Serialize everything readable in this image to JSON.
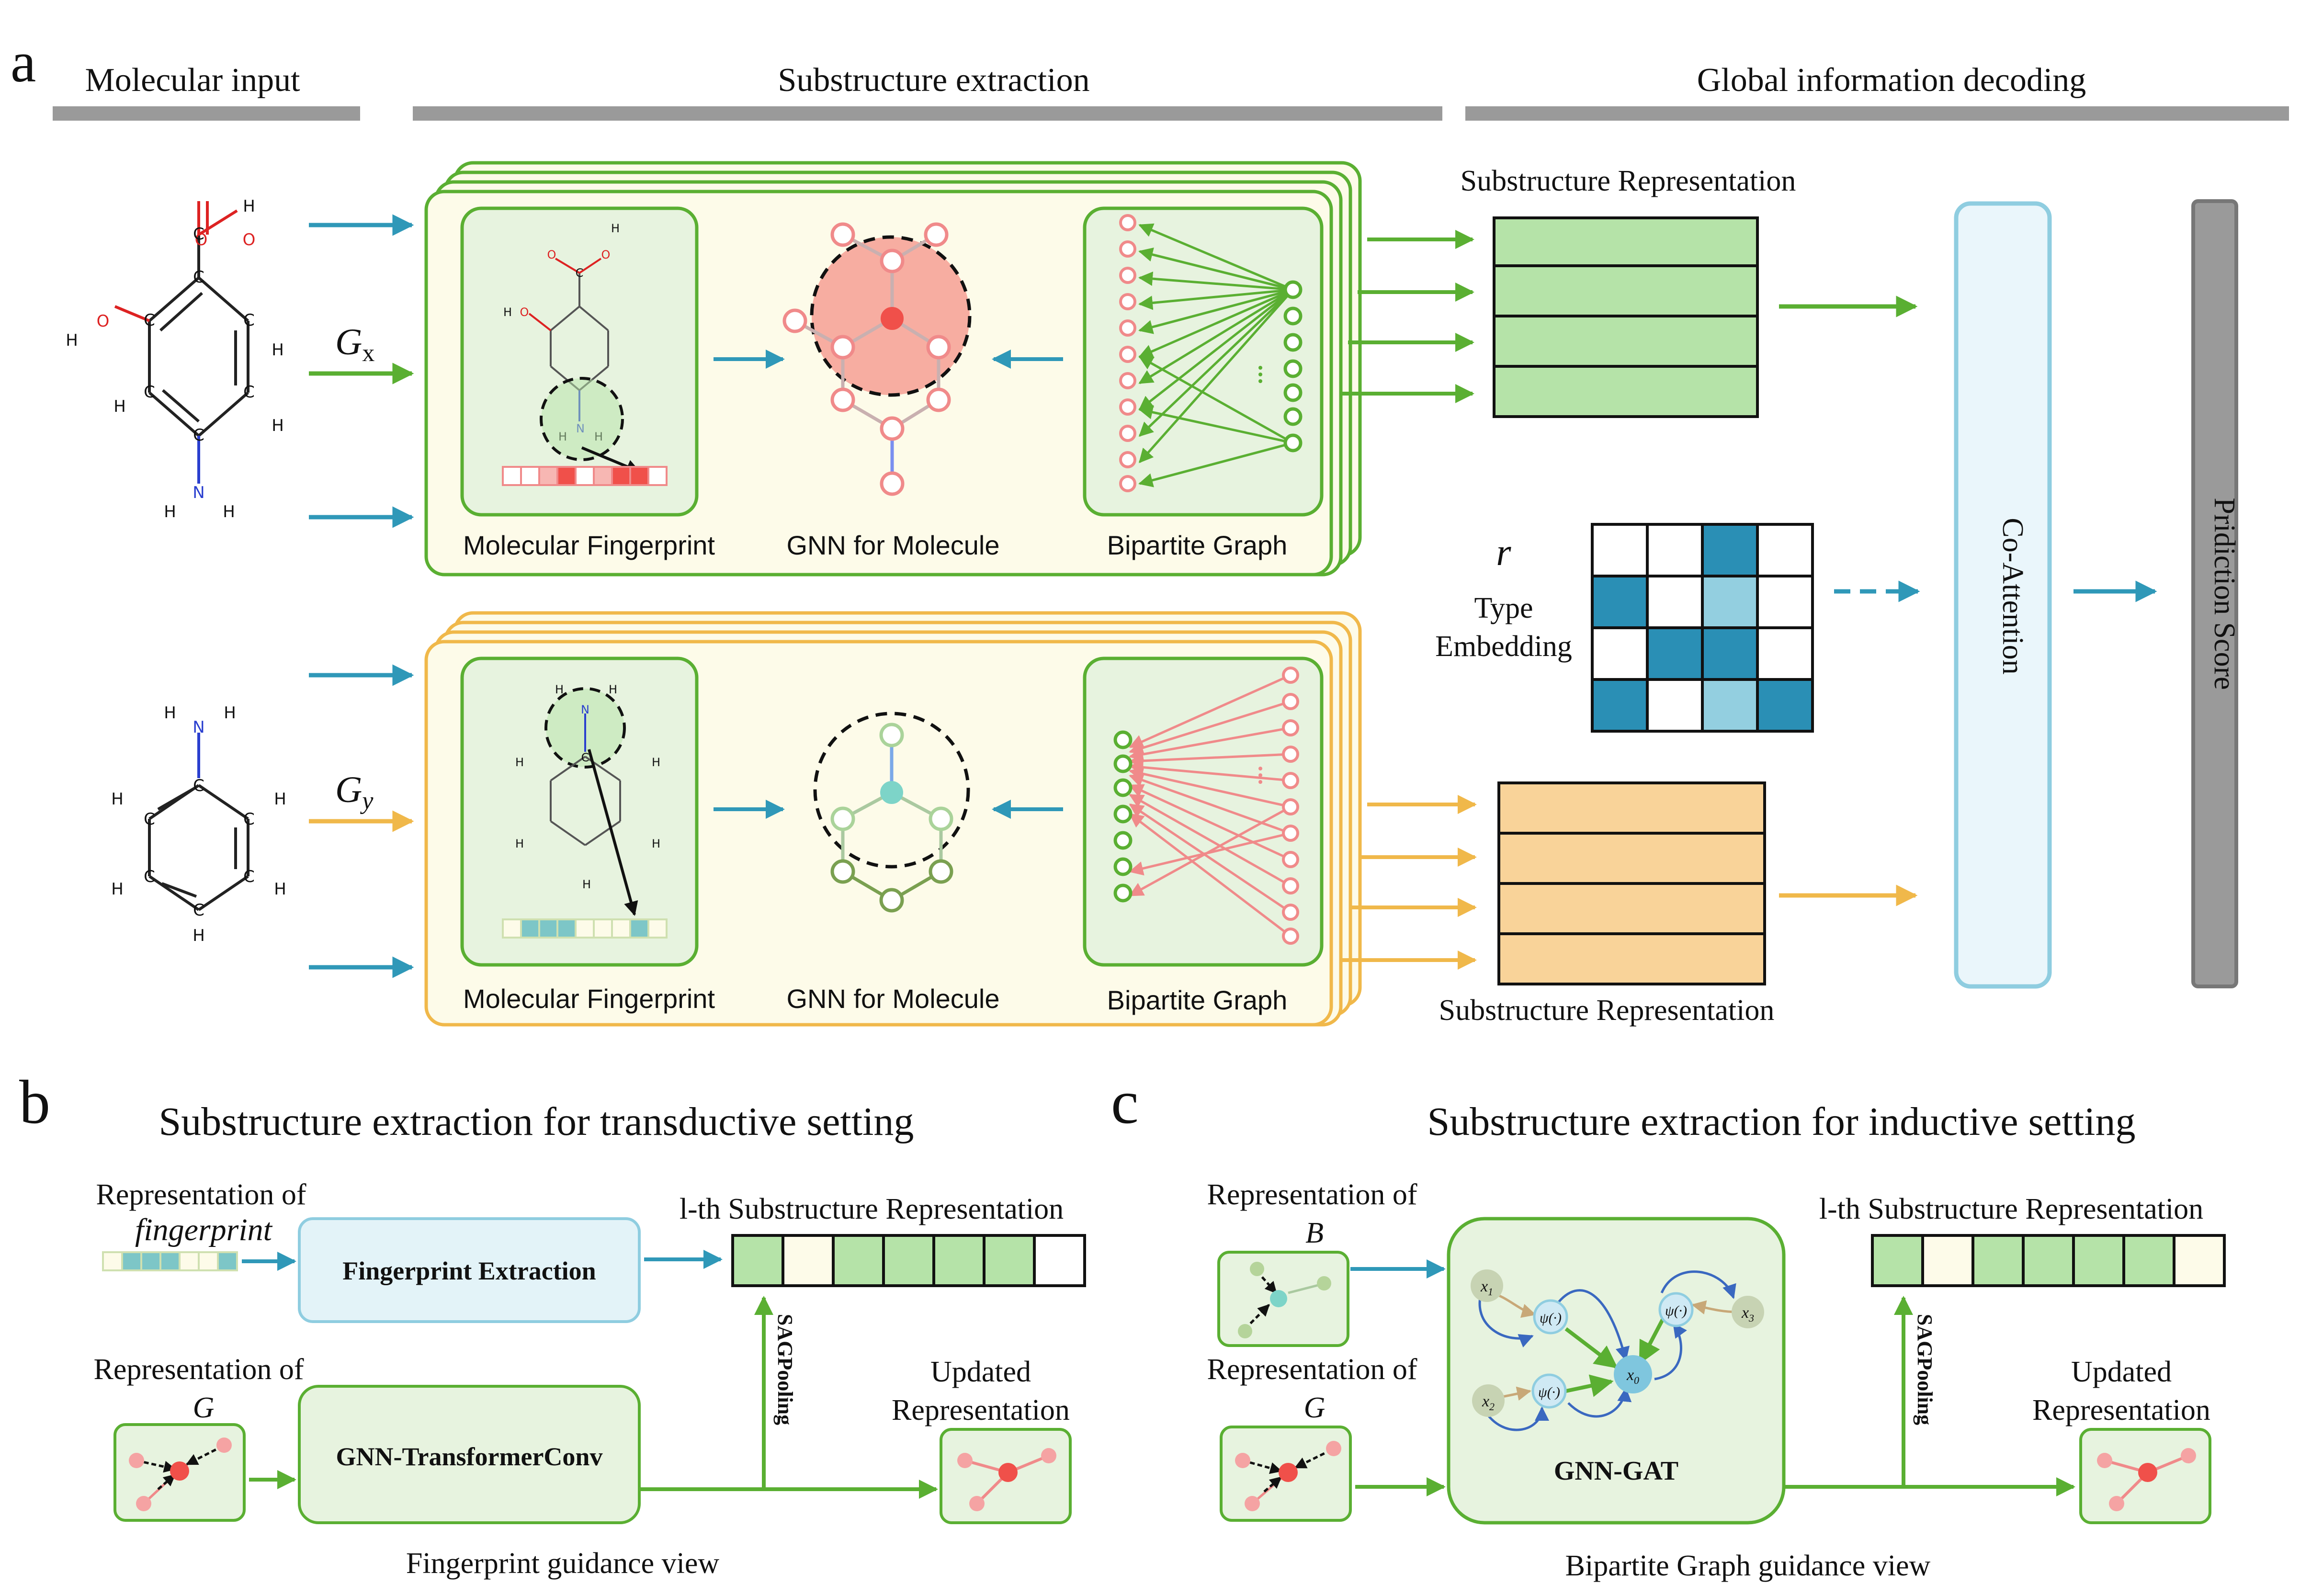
{
  "panel_letters": {
    "a": "a",
    "b": "b",
    "c": "c"
  },
  "panel_a": {
    "stage_headers": {
      "molecular_input": "Molecular input",
      "substructure_extraction": "Substructure extraction",
      "global_decoding": "Global information decoding"
    },
    "graph_x_symbol": "G",
    "graph_x_subscript": "x",
    "graph_y_symbol": "G",
    "graph_y_subscript": "y",
    "drug_x_label": "",
    "drug_y_label": "",
    "box_labels": {
      "molecular_fingerprint": "Molecular Fingerprint",
      "gnn_for_molecule": "GNN for Molecule",
      "bipartite_graph": "Bipartite Graph"
    },
    "substructure_representation": "Substructure Representation",
    "type_symbol": "r",
    "type_embedding_line1": "Type",
    "type_embedding_line2": "Embedding",
    "co_attention": "Co-Attention",
    "prediction_score": "Pridiction Score",
    "colors": {
      "green": "#5aaf32",
      "orange": "#f0b84a",
      "blue_arrow": "#2f98b8",
      "teal_dark": "#2a8fb5",
      "teal_light": "#93cfe0",
      "pink": "#f08a8a",
      "red": "#f0504a",
      "cream": "#fdfbe9",
      "green_fill": "#b5e3a8",
      "orange_fill": "#f9d399",
      "box_fill": "#e7f3df",
      "coatt_fill": "#eaf6fb"
    }
  },
  "panel_b": {
    "title": "Substructure extraction for transductive setting",
    "rep_of_fingerprint_line1": "Representation of",
    "rep_of_fingerprint_line2": "fingerprint",
    "fingerprint_extraction": "Fingerprint Extraction",
    "rep_of_g_line1": "Representation of",
    "rep_of_g_line2": "G",
    "gnn_transformerconv": "GNN-TransformerConv",
    "lth_substructure": "l-th Substructure Representation",
    "sagpooling": "SAGPooling",
    "updated_line1": "Updated",
    "updated_line2": "Representation",
    "view_caption": "Fingerprint guidance view"
  },
  "panel_c": {
    "title": "Substructure extraction for inductive setting",
    "rep_of_b_line1": "Representation of",
    "rep_of_b_line2": "B",
    "rep_of_g_line1": "Representation of",
    "rep_of_g_line2": "G",
    "gnn_gat": "GNN-GAT",
    "psi": "ψ(·)",
    "x0": "x",
    "x0_sub": "0",
    "x1": "x",
    "x1_sub": "1",
    "x2": "x",
    "x2_sub": "2",
    "x3": "x",
    "x3_sub": "3",
    "lth_substructure": "l-th Substructure Representation",
    "sagpooling": "SAGPooling",
    "updated_line1": "Updated",
    "updated_line2": "Representation",
    "view_caption": "Bipartite Graph guidance view"
  },
  "atoms": {
    "O": "O",
    "H": "H",
    "C": "C",
    "N": "N"
  }
}
